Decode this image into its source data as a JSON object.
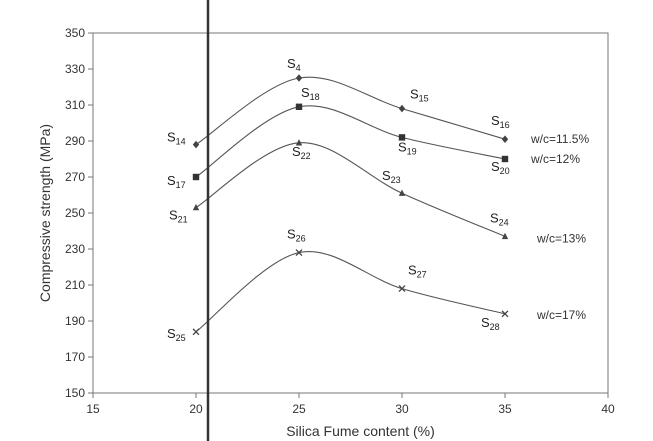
{
  "chart_data": {
    "type": "line",
    "xlabel": "Silica Fume content (%)",
    "ylabel": "Compressive strength (MPa)",
    "xlim": [
      15,
      40
    ],
    "ylim": [
      150,
      350
    ],
    "xticks": [
      "15",
      "20",
      "25",
      "30",
      "35",
      "40"
    ],
    "yticks": [
      "150",
      "170",
      "190",
      "210",
      "230",
      "250",
      "270",
      "290",
      "310",
      "330",
      "350"
    ],
    "grid": false,
    "series": [
      {
        "name": "w/c=11.5%",
        "marker": "diamond",
        "points": [
          {
            "x": 20,
            "y": 288,
            "label": "S",
            "sub": "14"
          },
          {
            "x": 25,
            "y": 325,
            "label": "S",
            "sub": "4"
          },
          {
            "x": 30,
            "y": 308,
            "label": "S",
            "sub": "15"
          },
          {
            "x": 35,
            "y": 291,
            "label": "S",
            "sub": "16"
          }
        ]
      },
      {
        "name": "w/c=12%",
        "marker": "square",
        "points": [
          {
            "x": 20,
            "y": 270,
            "label": "S",
            "sub": "17"
          },
          {
            "x": 25,
            "y": 309,
            "label": "S",
            "sub": "18"
          },
          {
            "x": 30,
            "y": 292,
            "label": "S",
            "sub": "19"
          },
          {
            "x": 35,
            "y": 280,
            "label": "S",
            "sub": "20"
          }
        ]
      },
      {
        "name": "w/c=13%",
        "marker": "triangle",
        "points": [
          {
            "x": 20,
            "y": 253,
            "label": "S",
            "sub": "21"
          },
          {
            "x": 25,
            "y": 289,
            "label": "S",
            "sub": "22"
          },
          {
            "x": 30,
            "y": 261,
            "label": "S",
            "sub": "23"
          },
          {
            "x": 35,
            "y": 237,
            "label": "S",
            "sub": "24"
          }
        ]
      },
      {
        "name": "w/c=17%",
        "marker": "x",
        "points": [
          {
            "x": 20,
            "y": 184,
            "label": "S",
            "sub": "25"
          },
          {
            "x": 25,
            "y": 228,
            "label": "S",
            "sub": "26"
          },
          {
            "x": 30,
            "y": 208,
            "label": "S",
            "sub": "27"
          },
          {
            "x": 35,
            "y": 194,
            "label": "S",
            "sub": "28"
          }
        ]
      }
    ]
  }
}
